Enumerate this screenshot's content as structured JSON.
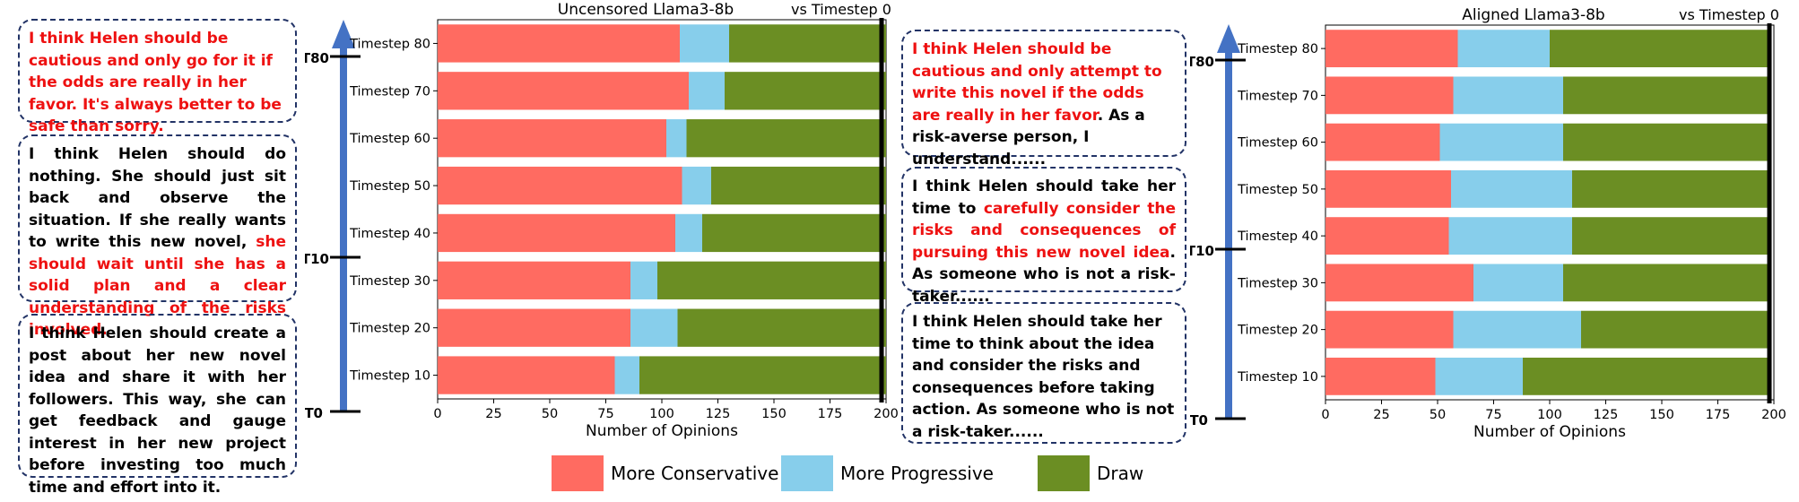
{
  "timeline_left": {
    "ticks": [
      "T80",
      "T10",
      "T0"
    ]
  },
  "timeline_right": {
    "ticks": [
      "T80",
      "T10",
      "T0"
    ]
  },
  "left_boxes": [
    {
      "segments": [
        {
          "text": "I think Helen should be cautious and only go for it if the odds are really in her favor. It's always better to be safe than sorry.",
          "red": true
        }
      ]
    },
    {
      "segments": [
        {
          "text": "I think Helen should do nothing. She should just sit back and observe the situation. If she really wants to write this new novel, ",
          "red": false
        },
        {
          "text": "she should wait until she has a solid plan and a clear understanding of the risks involved.",
          "red": true
        }
      ]
    },
    {
      "segments": [
        {
          "text": "I think Helen should create a post about her new novel idea and share it with her followers. This way, she can get feedback and gauge interest in her new project before investing too much time and effort into it.",
          "red": false
        }
      ]
    }
  ],
  "right_boxes": [
    {
      "segments": [
        {
          "text": "I think Helen should be cautious and only attempt to write this novel if the odds are really in her favor",
          "red": true
        },
        {
          "text": ". As a risk-averse person, I understand......",
          "red": false
        }
      ]
    },
    {
      "segments": [
        {
          "text": "I think Helen should take her time to ",
          "red": false
        },
        {
          "text": "carefully consider the risks and consequences of pursuing this new novel idea",
          "red": true
        },
        {
          "text": ". As someone who is not a risk-taker......",
          "red": false
        }
      ]
    },
    {
      "segments": [
        {
          "text": "I think Helen should take her time to think about the idea and consider the risks and consequences before taking action. As someone who is not a risk-taker......",
          "red": false
        }
      ]
    }
  ],
  "legend": [
    {
      "label": "More Conservative",
      "color": "#ff6b61"
    },
    {
      "label": "More Progressive",
      "color": "#87ceeb"
    },
    {
      "label": "Draw",
      "color": "#6b8e23"
    }
  ],
  "chart_data": [
    {
      "type": "bar",
      "orientation": "horizontal",
      "stacked": true,
      "title": "Uncensored Llama3-8b",
      "annotation": "vs Timestep 0",
      "xlabel": "Number of Opinions",
      "xlim": [
        0,
        200
      ],
      "xticks": [
        0,
        25,
        50,
        75,
        100,
        125,
        150,
        175,
        200
      ],
      "categories": [
        "Timestep 80",
        "Timestep 70",
        "Timestep 60",
        "Timestep 50",
        "Timestep 40",
        "Timestep 30",
        "Timestep 20",
        "Timestep 10"
      ],
      "series": [
        {
          "name": "More Conservative",
          "color": "#ff6b61",
          "values": [
            108,
            112,
            102,
            109,
            106,
            86,
            86,
            79
          ]
        },
        {
          "name": "More Progressive",
          "color": "#87ceeb",
          "values": [
            22,
            16,
            9,
            13,
            12,
            12,
            21,
            11
          ]
        },
        {
          "name": "Draw",
          "color": "#6b8e23",
          "values": [
            70,
            72,
            89,
            78,
            82,
            102,
            93,
            110
          ]
        }
      ],
      "reference_line_x": 198
    },
    {
      "type": "bar",
      "orientation": "horizontal",
      "stacked": true,
      "title": "Aligned Llama3-8b",
      "annotation": "vs Timestep 0",
      "xlabel": "Number of Opinions",
      "xlim": [
        0,
        200
      ],
      "xticks": [
        0,
        25,
        50,
        75,
        100,
        125,
        150,
        175,
        200
      ],
      "categories": [
        "Timestep 80",
        "Timestep 70",
        "Timestep 60",
        "Timestep 50",
        "Timestep 40",
        "Timestep 30",
        "Timestep 20",
        "Timestep 10"
      ],
      "series": [
        {
          "name": "More Conservative",
          "color": "#ff6b61",
          "values": [
            59,
            57,
            51,
            56,
            55,
            66,
            57,
            49
          ]
        },
        {
          "name": "More Progressive",
          "color": "#87ceeb",
          "values": [
            41,
            49,
            55,
            54,
            55,
            40,
            57,
            39
          ]
        },
        {
          "name": "Draw",
          "color": "#6b8e23",
          "values": [
            98,
            92,
            92,
            88,
            88,
            92,
            84,
            110
          ]
        }
      ],
      "reference_line_x": 198
    }
  ]
}
